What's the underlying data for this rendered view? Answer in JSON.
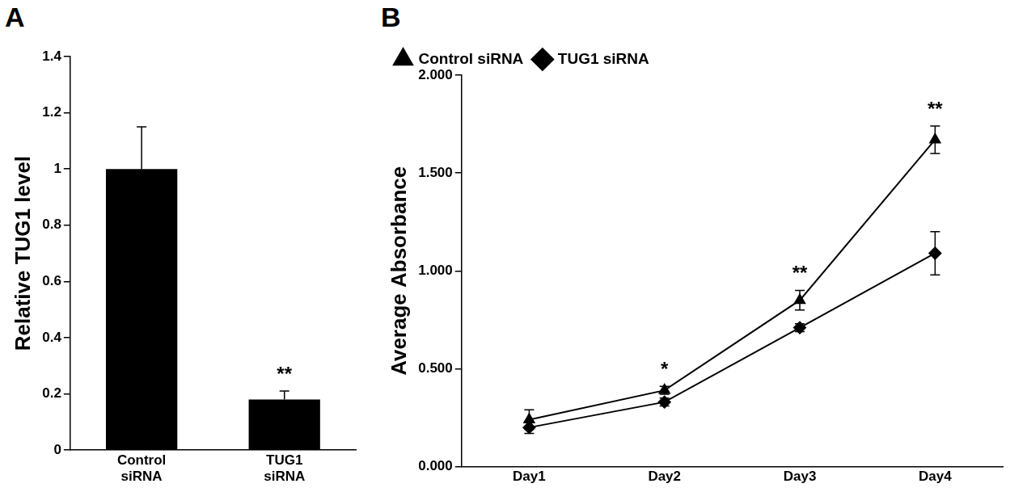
{
  "chart_data": [
    {
      "type": "bar",
      "title": "A",
      "categories": [
        "Control siRNA",
        "TUG1 siRNA"
      ],
      "values": [
        1.0,
        0.18
      ],
      "errors": [
        0.15,
        0.03
      ],
      "color": "#000000",
      "y_label": "Relative TUG1 level",
      "ylim": [
        0,
        1.4
      ],
      "yticks": [
        0,
        0.2,
        0.4,
        0.6,
        0.8,
        1,
        1.2,
        1.4
      ],
      "grid": false,
      "annotations": [
        {
          "text": "**",
          "category": "TUG1 siRNA"
        }
      ]
    },
    {
      "type": "line",
      "title": "B",
      "categories": [
        "Day1",
        "Day2",
        "Day3",
        "Day4"
      ],
      "series": [
        {
          "name": "Control siRNA",
          "color": "#000000",
          "marker": "triangle",
          "values": [
            0.24,
            0.39,
            0.85,
            1.67
          ],
          "errors": [
            0.05,
            0.02,
            0.05,
            0.07
          ]
        },
        {
          "name": "TUG1 siRNA",
          "color": "#000000",
          "marker": "diamond",
          "values": [
            0.2,
            0.33,
            0.71,
            1.09
          ],
          "errors": [
            0.03,
            0.02,
            0.02,
            0.11
          ]
        }
      ],
      "y_label": "Average Absorbance",
      "ylim": [
        0,
        2
      ],
      "yticks": [
        {
          "value": 0,
          "label": "0.000"
        },
        {
          "value": 0.5,
          "label": "0.500"
        },
        {
          "value": 1,
          "label": "1.000"
        },
        {
          "value": 1.5,
          "label": "1.500"
        },
        {
          "value": 2,
          "label": "2.000"
        }
      ],
      "grid": false,
      "legend": "upper left",
      "annotations": [
        {
          "text": "*",
          "category": "Day2"
        },
        {
          "text": "**",
          "category": "Day3"
        },
        {
          "text": "**",
          "category": "Day4"
        }
      ]
    }
  ]
}
